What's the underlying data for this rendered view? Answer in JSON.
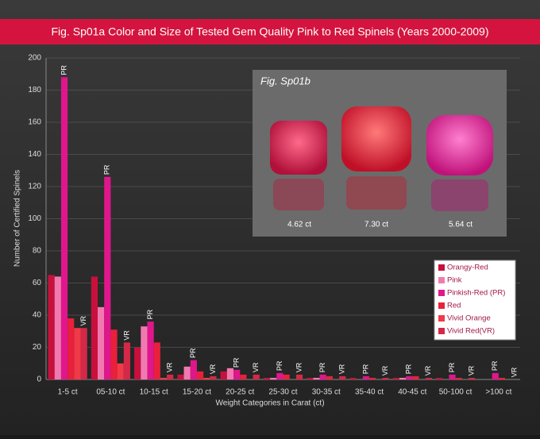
{
  "chart_data": {
    "type": "bar",
    "title": "Fig. Sp01a Color and Size of Tested Gem Quality Pink to Red Spinels (Years 2000-2009)",
    "y_label": "Number of Certified Spinels",
    "x_label": "Weight Categories in Carat (ct)",
    "categories": [
      "1-5 ct",
      "05-10 ct",
      "10-15 ct",
      "15-20 ct",
      "20-25 ct",
      "25-30 ct",
      "30-35 ct",
      "35-40 ct",
      "40-45 ct",
      "50-100 ct",
      ">100 ct"
    ],
    "series": [
      {
        "name": "Orangy-Red",
        "color": "#c8103c",
        "values": [
          65,
          64,
          20,
          3,
          5,
          1,
          1,
          1,
          1,
          1,
          0
        ]
      },
      {
        "name": "Pink",
        "color": "#f07ab0",
        "values": [
          64,
          45,
          33,
          8,
          7,
          1,
          1,
          0,
          1,
          0,
          0
        ]
      },
      {
        "name": "Pinkish-Red (PR)",
        "color": "#e0168c",
        "bar_label": "PR",
        "values": [
          188,
          126,
          36,
          12,
          6,
          4,
          3,
          2,
          2,
          3,
          4
        ]
      },
      {
        "name": "Red",
        "color": "#e8203c",
        "values": [
          38,
          31,
          23,
          5,
          3,
          3,
          2,
          1,
          2,
          1,
          1
        ]
      },
      {
        "name": "Vivid Orange",
        "color": "#f03a48",
        "values": [
          32,
          10,
          1,
          1,
          0,
          0,
          0,
          0,
          0,
          0,
          0
        ]
      },
      {
        "name": "Vivid Red(VR)",
        "color": "#d42848",
        "bar_label": "VR",
        "values": [
          32,
          23,
          3,
          2,
          3,
          3,
          2,
          1,
          1,
          1,
          0
        ]
      }
    ],
    "ylim": [
      0,
      200
    ],
    "yticks": [
      0,
      20,
      40,
      60,
      80,
      100,
      120,
      140,
      160,
      180,
      200
    ],
    "grid": true,
    "inset": {
      "title": "Fig. Sp01b",
      "labels": [
        "4.62 ct",
        "7.30 ct",
        "5.64 ct"
      ]
    }
  }
}
